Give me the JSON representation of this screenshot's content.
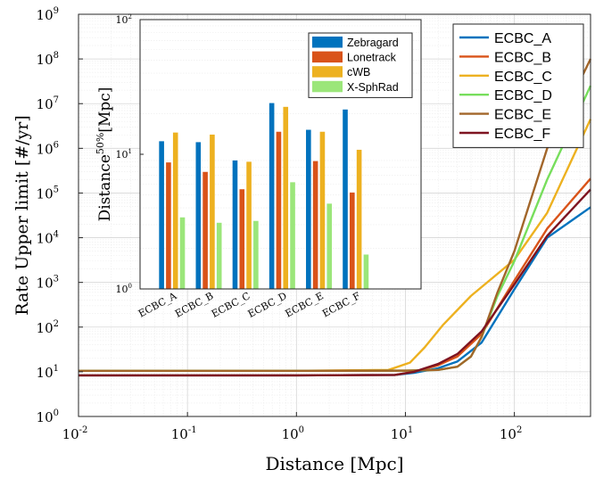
{
  "chart_data": [
    {
      "type": "line",
      "xlabel": "Distance [Mpc]",
      "ylabel": "Rate Upper limit [#/yr]",
      "xscale": "log",
      "yscale": "log",
      "xlim": [
        0.01,
        500
      ],
      "ylim": [
        1,
        1000000000
      ],
      "grid": true,
      "legend_position": "top-right",
      "x_ticks": [
        {
          "value": 0.01,
          "base": "10",
          "exp": "-2"
        },
        {
          "value": 0.1,
          "base": "10",
          "exp": "-1"
        },
        {
          "value": 1,
          "base": "10",
          "exp": "0"
        },
        {
          "value": 10,
          "base": "10",
          "exp": "1"
        },
        {
          "value": 100,
          "base": "10",
          "exp": "2"
        }
      ],
      "y_ticks": [
        {
          "value": 1,
          "base": "10",
          "exp": "0"
        },
        {
          "value": 10,
          "base": "10",
          "exp": "1"
        },
        {
          "value": 100,
          "base": "10",
          "exp": "2"
        },
        {
          "value": 1000,
          "base": "10",
          "exp": "3"
        },
        {
          "value": 10000,
          "base": "10",
          "exp": "4"
        },
        {
          "value": 100000,
          "base": "10",
          "exp": "5"
        },
        {
          "value": 1000000,
          "base": "10",
          "exp": "6"
        },
        {
          "value": 10000000,
          "base": "10",
          "exp": "7"
        },
        {
          "value": 100000000,
          "base": "10",
          "exp": "8"
        },
        {
          "value": 1000000000,
          "base": "10",
          "exp": "9"
        }
      ],
      "series": [
        {
          "name": "ECBC_A",
          "color": "#0072BD",
          "values": [
            [
              0.01,
              8.3
            ],
            [
              1,
              8.3
            ],
            [
              8,
              8.5
            ],
            [
              12,
              9.5
            ],
            [
              20,
              12
            ],
            [
              30,
              17
            ],
            [
              50,
              45
            ],
            [
              100,
              700
            ],
            [
              200,
              10000
            ],
            [
              500,
              48000
            ]
          ]
        },
        {
          "name": "ECBC_B",
          "color": "#D95319",
          "values": [
            [
              0.01,
              8.3
            ],
            [
              1,
              8.3
            ],
            [
              8,
              8.5
            ],
            [
              12,
              10
            ],
            [
              20,
              14
            ],
            [
              30,
              22
            ],
            [
              50,
              70
            ],
            [
              100,
              1100
            ],
            [
              200,
              16000
            ],
            [
              500,
              210000
            ]
          ]
        },
        {
          "name": "ECBC_C",
          "color": "#EDB120",
          "values": [
            [
              0.01,
              10.5
            ],
            [
              1,
              10.5
            ],
            [
              7,
              11
            ],
            [
              11,
              16
            ],
            [
              15,
              35
            ],
            [
              22,
              110
            ],
            [
              40,
              500
            ],
            [
              100,
              3200
            ],
            [
              200,
              36000
            ],
            [
              500,
              4500000
            ]
          ]
        },
        {
          "name": "ECBC_D",
          "color": "#77DE5C",
          "values": [
            [
              0.01,
              10.5
            ],
            [
              1,
              10.5
            ],
            [
              10,
              10.6
            ],
            [
              20,
              11
            ],
            [
              30,
              13
            ],
            [
              40,
              22
            ],
            [
              50,
              60
            ],
            [
              70,
              500
            ],
            [
              100,
              3000
            ],
            [
              200,
              200000
            ],
            [
              500,
              25000000
            ]
          ]
        },
        {
          "name": "ECBC_E",
          "color": "#A2662A",
          "values": [
            [
              0.01,
              10.5
            ],
            [
              1,
              10.5
            ],
            [
              10,
              10.6
            ],
            [
              20,
              11
            ],
            [
              30,
              13
            ],
            [
              40,
              22
            ],
            [
              50,
              60
            ],
            [
              70,
              600
            ],
            [
              100,
              5000
            ],
            [
              200,
              1000000
            ],
            [
              500,
              100000000
            ]
          ]
        },
        {
          "name": "ECBC_F",
          "color": "#7E1421",
          "values": [
            [
              0.01,
              8.3
            ],
            [
              1,
              8.3
            ],
            [
              8,
              8.5
            ],
            [
              12,
              10
            ],
            [
              20,
              15
            ],
            [
              30,
              25
            ],
            [
              50,
              80
            ],
            [
              100,
              900
            ],
            [
              200,
              11000
            ],
            [
              500,
              120000
            ]
          ]
        }
      ]
    },
    {
      "type": "bar",
      "ylabel": "Distance^{50%} [Mpc]",
      "ylabel_main": "Distance",
      "ylabel_sup": "50%",
      "ylabel_unit": "[Mpc]",
      "yscale": "log",
      "ylim": [
        1,
        100
      ],
      "legend_position": "top-right",
      "y_ticks": [
        {
          "value": 1,
          "base": "10",
          "exp": "0"
        },
        {
          "value": 10,
          "base": "10",
          "exp": "1"
        },
        {
          "value": 100,
          "base": "10",
          "exp": "2"
        }
      ],
      "categories": [
        "ECBC_A",
        "ECBC_B",
        "ECBC_C",
        "ECBC_D",
        "ECBC_E",
        "ECBC_F"
      ],
      "series": [
        {
          "name": "Zebragard",
          "color": "#0072BD",
          "values": [
            12.5,
            12.3,
            9,
            24,
            15.2,
            21.5
          ]
        },
        {
          "name": "Lonetrack",
          "color": "#D95319",
          "values": [
            8.7,
            7.4,
            5.5,
            14.7,
            8.9,
            5.2
          ]
        },
        {
          "name": "cWB",
          "color": "#EDB120",
          "values": [
            14.5,
            14,
            8.8,
            22.5,
            14.7,
            10.8
          ]
        },
        {
          "name": "X-SphRad",
          "color": "#9BE67A",
          "values": [
            3.4,
            3.1,
            3.2,
            6.2,
            4.3,
            1.8
          ]
        }
      ]
    }
  ]
}
